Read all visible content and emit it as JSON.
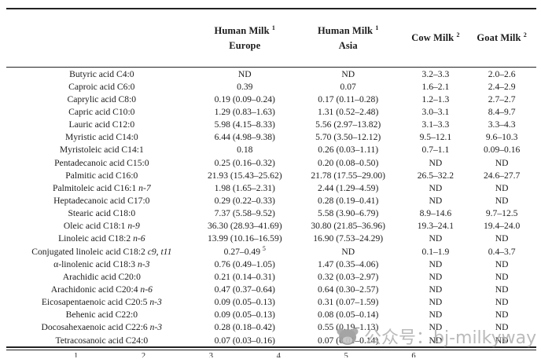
{
  "table": {
    "columns": {
      "label_header": "",
      "col1": {
        "title": "Human Milk",
        "sup": "1",
        "subtitle": "Europe"
      },
      "col2": {
        "title": "Human Milk",
        "sup": "1",
        "subtitle": "Asia"
      },
      "col3": {
        "title": "Cow Milk",
        "sup": "2",
        "subtitle": ""
      },
      "col4": {
        "title": "Goat Milk",
        "sup": "2",
        "subtitle": ""
      }
    },
    "rows": [
      {
        "label": "Butyric acid C4:0",
        "label_italic": "",
        "europe": "ND",
        "europe_sup": "",
        "asia": "ND",
        "cow": "3.2–3.3",
        "goat": "2.0–2.6"
      },
      {
        "label": "Caproic acid C6:0",
        "label_italic": "",
        "europe": "0.39",
        "europe_sup": "",
        "asia": "0.07",
        "cow": "1.6–2.1",
        "goat": "2.4–2.9"
      },
      {
        "label": "Caprylic acid C8:0",
        "label_italic": "",
        "europe": "0.19 (0.09–0.24)",
        "europe_sup": "",
        "asia": "0.17 (0.11–0.28)",
        "cow": "1.2–1.3",
        "goat": "2.7–2.7"
      },
      {
        "label": "Capric acid C10:0",
        "label_italic": "",
        "europe": "1.29 (0.83–1.63)",
        "europe_sup": "",
        "asia": "1.31 (0.52–2.48)",
        "cow": "3.0–3.1",
        "goat": "8.4–9.7"
      },
      {
        "label": "Lauric acid C12:0",
        "label_italic": "",
        "europe": "5.98 (4.15–8.33)",
        "europe_sup": "",
        "asia": "5.56 (2.97–13.82)",
        "cow": "3.1–3.3",
        "goat": "3.3–4.3"
      },
      {
        "label": "Myristic acid C14:0",
        "label_italic": "",
        "europe": "6.44 (4.98–9.38)",
        "europe_sup": "",
        "asia": "5.70 (3.50–12.12)",
        "cow": "9.5–12.1",
        "goat": "9.6–10.3"
      },
      {
        "label": "Myristoleic acid C14:1",
        "label_italic": "",
        "europe": "0.18",
        "europe_sup": "",
        "asia": "0.26 (0.03–1.11)",
        "cow": "0.7–1.1",
        "goat": "0.09–0.16"
      },
      {
        "label": "Pentadecanoic acid C15:0",
        "label_italic": "",
        "europe": "0.25 (0.16–0.32)",
        "europe_sup": "",
        "asia": "0.20 (0.08–0.50)",
        "cow": "ND",
        "goat": "ND"
      },
      {
        "label": "Palmitic acid C16:0",
        "label_italic": "",
        "europe": "21.93 (15.43–25.62)",
        "europe_sup": "",
        "asia": "21.78 (17.55–29.00)",
        "cow": "26.5–32.2",
        "goat": "24.6–27.7"
      },
      {
        "label": "Palmitoleic acid C16:1",
        "label_italic": "n-7",
        "europe": "1.98 (1.65–2.31)",
        "europe_sup": "",
        "asia": "2.44 (1.29–4.59)",
        "cow": "ND",
        "goat": "ND"
      },
      {
        "label": "Heptadecanoic acid C17:0",
        "label_italic": "",
        "europe": "0.29 (0.22–0.33)",
        "europe_sup": "",
        "asia": "0.28 (0.19–0.41)",
        "cow": "ND",
        "goat": "ND"
      },
      {
        "label": "Stearic acid C18:0",
        "label_italic": "",
        "europe": "7.37 (5.58–9.52)",
        "europe_sup": "",
        "asia": "5.58 (3.90–6.79)",
        "cow": "8.9–14.6",
        "goat": "9.7–12.5"
      },
      {
        "label": "Oleic acid C18:1",
        "label_italic": "n-9",
        "europe": "36.30 (28.93–41.69)",
        "europe_sup": "",
        "asia": "30.80 (21.85–36.96)",
        "cow": "19.3–24.1",
        "goat": "19.4–24.0"
      },
      {
        "label": "Linoleic acid C18:2",
        "label_italic": "n-6",
        "europe": "13.99 (10.16–16.59)",
        "europe_sup": "",
        "asia": "16.90 (7.53–24.29)",
        "cow": "ND",
        "goat": "ND"
      },
      {
        "label": "Conjugated linoleic acid C18:2",
        "label_italic": "c9, t11",
        "europe": "0.27–0.49",
        "europe_sup": "5",
        "asia": "ND",
        "cow": "0.1–1.9",
        "goat": "0.4–3.7"
      },
      {
        "label": "α-linolenic acid C18:3",
        "label_italic": "n-3",
        "europe": "0.76 (0.49–1.05)",
        "europe_sup": "",
        "asia": "1.47 (0.35–4.06)",
        "cow": "ND",
        "goat": "ND"
      },
      {
        "label": "Arachidic acid C20:0",
        "label_italic": "",
        "europe": "0.21 (0.14–0.31)",
        "europe_sup": "",
        "asia": "0.32 (0.03–2.97)",
        "cow": "ND",
        "goat": "ND"
      },
      {
        "label": "Arachidonic acid C20:4",
        "label_italic": "n-6",
        "europe": "0.47 (0.37–0.64)",
        "europe_sup": "",
        "asia": "0.64 (0.30–2.57)",
        "cow": "ND",
        "goat": "ND"
      },
      {
        "label": "Eicosapentaenoic acid C20:5",
        "label_italic": "n-3",
        "europe": "0.09 (0.05–0.13)",
        "europe_sup": "",
        "asia": "0.31 (0.07–1.59)",
        "cow": "ND",
        "goat": "ND"
      },
      {
        "label": "Behenic acid C22:0",
        "label_italic": "",
        "europe": "0.09 (0.05–0.13)",
        "europe_sup": "",
        "asia": "0.08 (0.05–0.14)",
        "cow": "ND",
        "goat": "ND"
      },
      {
        "label": "Docosahexaenoic acid C22:6",
        "label_italic": "n-3",
        "europe": "0.28 (0.18–0.42)",
        "europe_sup": "",
        "asia": "0.55 (0.19–1.13)",
        "cow": "ND",
        "goat": "ND"
      },
      {
        "label": "Tetracosanoic acid C24:0",
        "label_italic": "",
        "europe": "0.07 (0.03–0.16)",
        "europe_sup": "",
        "asia": "0.07 (0.01–0.14)",
        "cow": "ND",
        "goat": "ND"
      }
    ],
    "footnote_fragment": "1 2 3 4 5 6"
  },
  "watermark": {
    "text": "公众号：bj-milkyway",
    "color": "#b5b5b5"
  }
}
